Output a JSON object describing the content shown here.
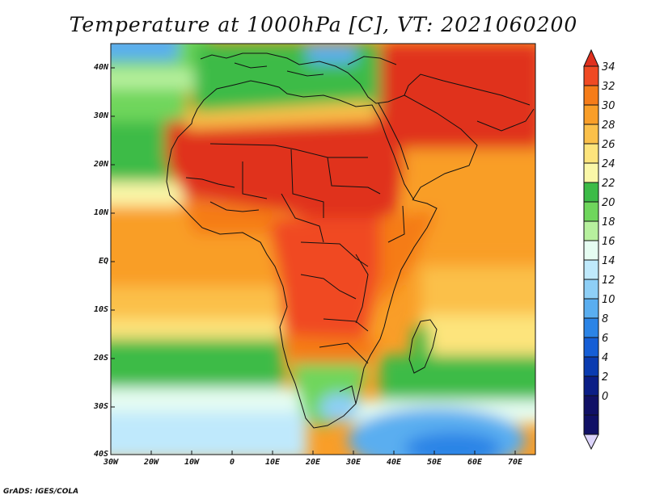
{
  "title": "Temperature at 1000hPa [C], VT: 2021060200",
  "credit": "GrADS: IGES/COLA",
  "map": {
    "lon_range": [
      -30,
      75
    ],
    "lat_range": [
      -40,
      45
    ],
    "lon_ticks": [
      "30W",
      "20W",
      "10W",
      "0",
      "10E",
      "20E",
      "30E",
      "40E",
      "50E",
      "60E",
      "70E"
    ],
    "lat_ticks": [
      "40N",
      "30N",
      "20N",
      "10N",
      "EQ",
      "10S",
      "20S",
      "30S",
      "40S"
    ]
  },
  "colorbar": {
    "labels": [
      "34",
      "32",
      "30",
      "28",
      "26",
      "24",
      "22",
      "20",
      "18",
      "16",
      "14",
      "12",
      "10",
      "8",
      "6",
      "4",
      "2",
      "0"
    ],
    "colors": [
      "#e0301e",
      "#f04a23",
      "#f57c19",
      "#f99e28",
      "#fbc04a",
      "#fde47c",
      "#faf7a8",
      "#3cbb47",
      "#6fd65c",
      "#b7f09e",
      "#e6fdf2",
      "#bfe9fc",
      "#8ecff6",
      "#5aaef0",
      "#2b84e6",
      "#155ed6",
      "#0a3bb0",
      "#0b1e86",
      "#111166",
      "#dcd4fb"
    ]
  }
}
